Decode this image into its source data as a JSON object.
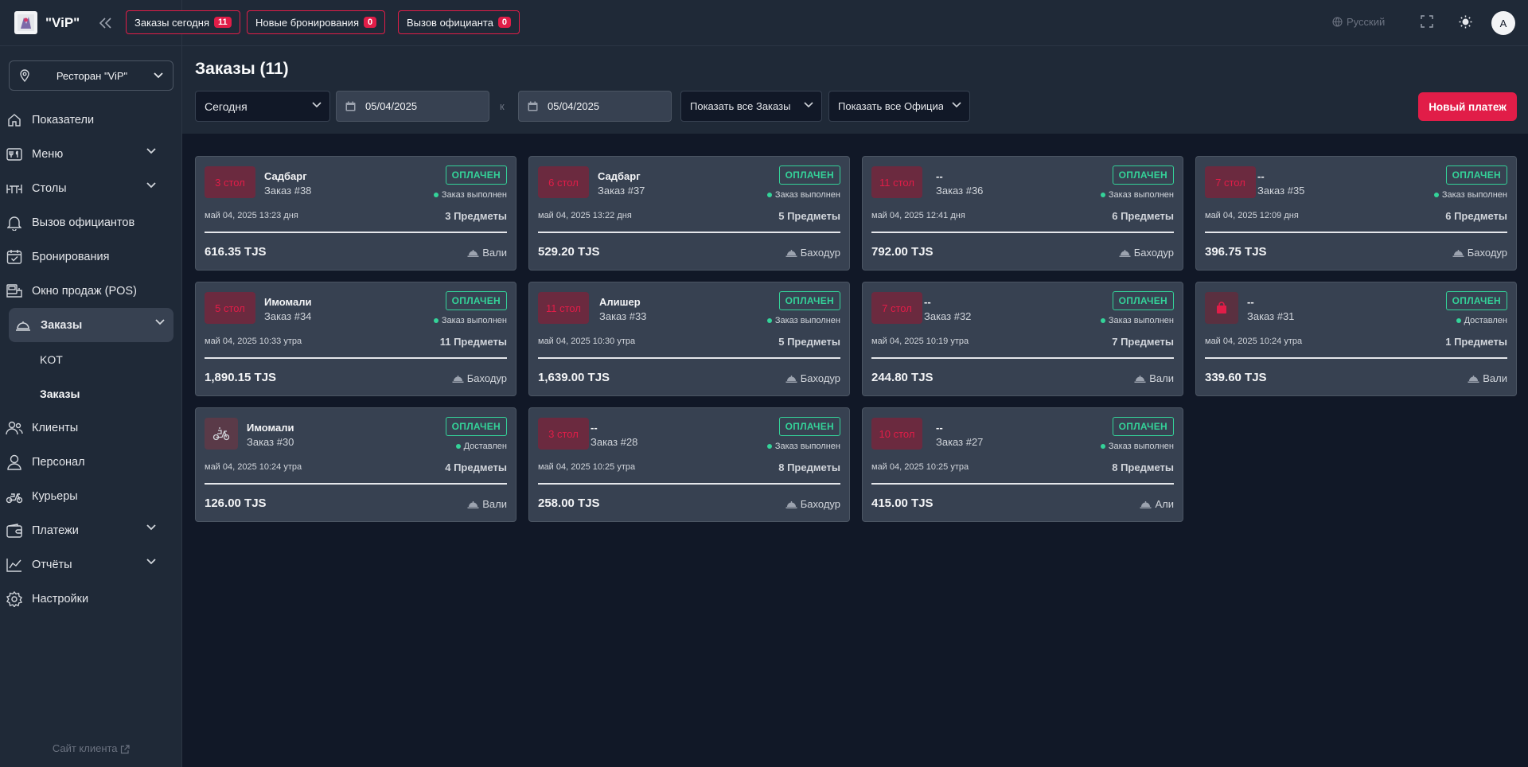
{
  "brand": {
    "name": "\"ViP\""
  },
  "sidebar": {
    "restaurant": "Ресторан \"ViP\"",
    "items": [
      {
        "label": "Показатели",
        "icon": "home-icon"
      },
      {
        "label": "Меню",
        "icon": "cutlery-icon"
      },
      {
        "label": "Столы",
        "icon": "table-icon"
      },
      {
        "label": "Вызов официантов",
        "icon": "bell-icon"
      },
      {
        "label": "Бронирования",
        "icon": "calendar-check-icon"
      },
      {
        "label": "Окно продаж (POS)",
        "icon": "pos-icon"
      },
      {
        "label": "Заказы",
        "icon": "cloche-icon"
      },
      {
        "label": "Клиенты",
        "icon": "users-icon"
      },
      {
        "label": "Персонал",
        "icon": "user-icon"
      },
      {
        "label": "Курьеры",
        "icon": "scooter-icon"
      },
      {
        "label": "Платежи",
        "icon": "wallet-icon"
      },
      {
        "label": "Отчёты",
        "icon": "chart-icon"
      },
      {
        "label": "Настройки",
        "icon": "gear-icon"
      }
    ],
    "sub_items": [
      "KOT",
      "Заказы"
    ],
    "client_site": "Сайт клиента"
  },
  "topbar": {
    "pills": [
      {
        "label": "Заказы сегодня",
        "count": "11"
      },
      {
        "label": "Новые бронирования",
        "count": "0"
      },
      {
        "label": "Вызов официанта",
        "count": "0"
      }
    ],
    "language": "Русский",
    "avatar": "A"
  },
  "page": {
    "title": "Заказы (11)",
    "period": "Сегодня",
    "date_from": "05/04/2025",
    "to_label": "к",
    "date_to": "05/04/2025",
    "orders_filter": "Показать все Заказы",
    "waiters_filter": "Показать все Официанты",
    "new_payment": "Новый платеж"
  },
  "orders": [
    {
      "table": "3 стол",
      "customer": "Садбарг",
      "order": "Заказ #38",
      "status": "ОПЛАЧЕН",
      "state": "Заказ выполнен",
      "datetime": "май 04, 2025 13:23 дня",
      "items": "3 Предметы",
      "amount": "616.35 TJS",
      "waiter": "Вали"
    },
    {
      "table": "6 стол",
      "customer": "Садбарг",
      "order": "Заказ #37",
      "status": "ОПЛАЧЕН",
      "state": "Заказ выполнен",
      "datetime": "май 04, 2025 13:22 дня",
      "items": "5 Предметы",
      "amount": "529.20 TJS",
      "waiter": "Баходур"
    },
    {
      "table": "11 стол",
      "customer": "--",
      "order": "Заказ #36",
      "status": "ОПЛАЧЕН",
      "state": "Заказ выполнен",
      "datetime": "май 04, 2025 12:41 дня",
      "items": "6 Предметы",
      "amount": "792.00 TJS",
      "waiter": "Баходур"
    },
    {
      "table": "7 стол",
      "customer": "--",
      "order": "Заказ #35",
      "status": "ОПЛАЧЕН",
      "state": "Заказ выполнен",
      "datetime": "май 04, 2025 12:09 дня",
      "items": "6 Предметы",
      "amount": "396.75 TJS",
      "waiter": "Баходур"
    },
    {
      "table": "5 стол",
      "customer": "Имомали",
      "order": "Заказ #34",
      "status": "ОПЛАЧЕН",
      "state": "Заказ выполнен",
      "datetime": "май 04, 2025 10:33 утра",
      "items": "11 Предметы",
      "amount": "1,890.15 TJS",
      "waiter": "Баходур"
    },
    {
      "table": "11 стол",
      "customer": "Алишер",
      "order": "Заказ #33",
      "status": "ОПЛАЧЕН",
      "state": "Заказ выполнен",
      "datetime": "май 04, 2025 10:30 утра",
      "items": "5 Предметы",
      "amount": "1,639.00 TJS",
      "waiter": "Баходур"
    },
    {
      "table": "7 стол",
      "customer": "--",
      "order": "Заказ #32",
      "status": "ОПЛАЧЕН",
      "state": "Заказ выполнен",
      "datetime": "май 04, 2025 10:19 утра",
      "items": "7 Предметы",
      "amount": "244.80 TJS",
      "waiter": "Вали"
    },
    {
      "table": "",
      "table_icon": "shopping-bag-icon",
      "customer": "--",
      "order": "Заказ #31",
      "status": "ОПЛАЧЕН",
      "state": "Доставлен",
      "datetime": "май 04, 2025 10:24 утра",
      "items": "1 Предметы",
      "amount": "339.60 TJS",
      "waiter": "Вали"
    },
    {
      "table": "",
      "table_icon": "delivery-scooter-icon",
      "customer": "Имомали",
      "order": "Заказ #30",
      "status": "ОПЛАЧЕН",
      "state": "Доставлен",
      "datetime": "май 04, 2025 10:24 утра",
      "items": "4 Предметы",
      "amount": "126.00 TJS",
      "waiter": "Вали"
    },
    {
      "table": "3 стол",
      "customer": "--",
      "order": "Заказ #28",
      "status": "ОПЛАЧЕН",
      "state": "Заказ выполнен",
      "datetime": "май 04, 2025 10:25 утра",
      "items": "8 Предметы",
      "amount": "258.00 TJS",
      "waiter": "Баходур"
    },
    {
      "table": "10 стол",
      "customer": "--",
      "order": "Заказ #27",
      "status": "ОПЛАЧЕН",
      "state": "Заказ выполнен",
      "datetime": "май 04, 2025 10:25 утра",
      "items": "8 Предметы",
      "amount": "415.00 TJS",
      "waiter": "Али"
    }
  ]
}
